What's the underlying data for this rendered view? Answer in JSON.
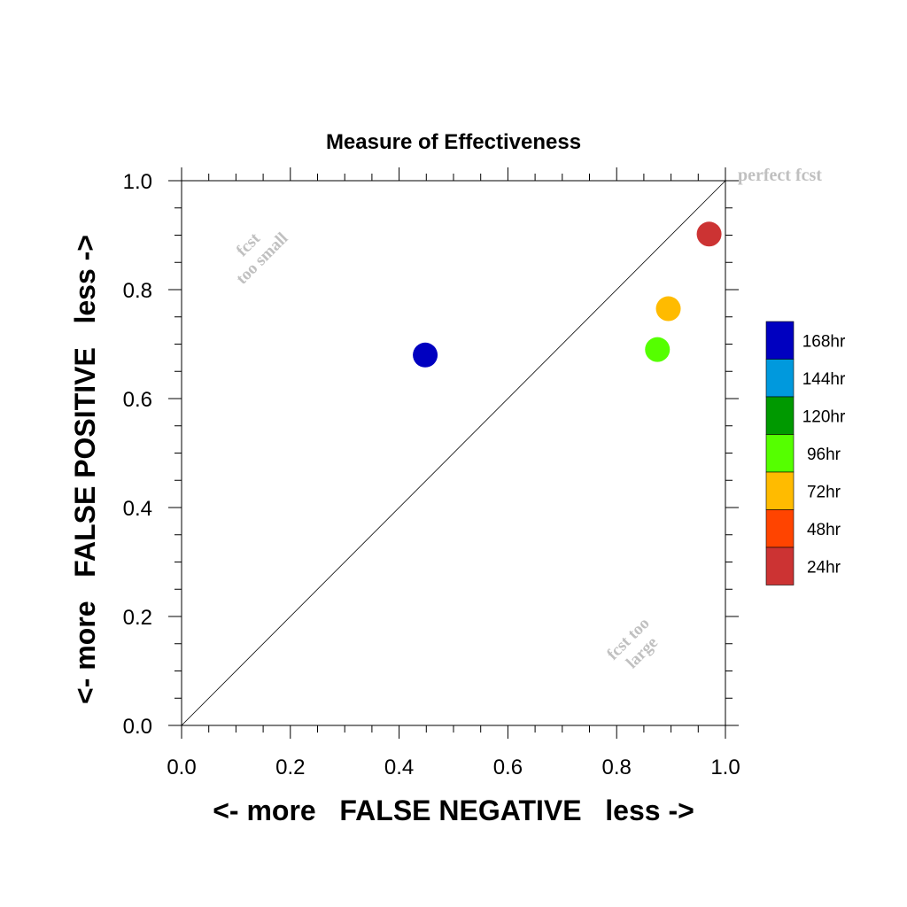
{
  "chart_data": {
    "type": "scatter",
    "title": "Measure of Effectiveness",
    "xlabel": "<- more   FALSE NEGATIVE   less ->",
    "ylabel": "<- more   FALSE POSITIVE   less ->",
    "xlim": [
      0.0,
      1.0
    ],
    "ylim": [
      0.0,
      1.0
    ],
    "xticks": [
      "0.0",
      "0.2",
      "0.4",
      "0.6",
      "0.8",
      "1.0"
    ],
    "yticks": [
      "0.0",
      "0.2",
      "0.4",
      "0.6",
      "0.8",
      "1.0"
    ],
    "grid": false,
    "diagonal_line": true,
    "legend_position": "right",
    "series": [
      {
        "name": "168hr",
        "color": "#0000c0",
        "x": 0.448,
        "y": 0.68
      },
      {
        "name": "144hr",
        "color": "#0099dd",
        "x": null,
        "y": null
      },
      {
        "name": "120hr",
        "color": "#009900",
        "x": null,
        "y": null
      },
      {
        "name": "96hr",
        "color": "#55ff00",
        "x": 0.875,
        "y": 0.69
      },
      {
        "name": "72hr",
        "color": "#ffbb00",
        "x": 0.895,
        "y": 0.765
      },
      {
        "name": "48hr",
        "color": "#ff4400",
        "x": null,
        "y": null
      },
      {
        "name": "24hr",
        "color": "#cc3333",
        "x": 0.97,
        "y": 0.902
      }
    ],
    "annotations": {
      "top_left_line1": "fcst",
      "top_left_line2": "too small",
      "bottom_right_line1": "fcst too",
      "bottom_right_line2": "large",
      "corner": "perfect fcst"
    }
  }
}
